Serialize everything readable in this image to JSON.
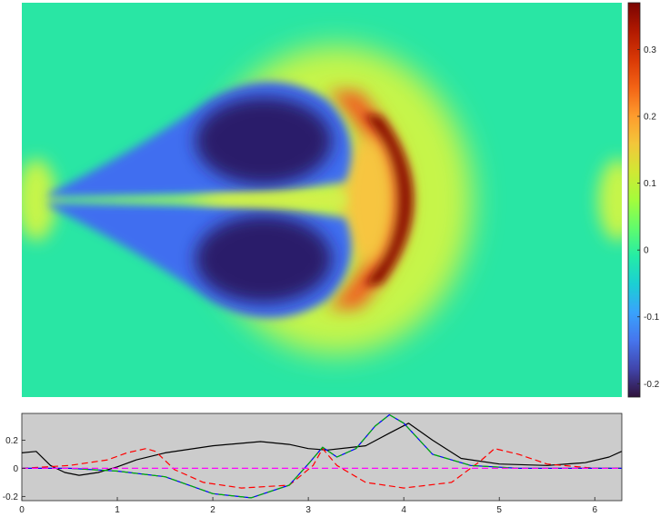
{
  "chart_data": [
    {
      "type": "heatmap",
      "title": "",
      "xlabel": "",
      "ylabel": "",
      "xlim": [
        0,
        6.2832
      ],
      "colormap": "turbo",
      "colorbar": {
        "range": [
          -0.22,
          0.37
        ],
        "ticks": [
          -0.2,
          -0.1,
          0,
          0.1,
          0.2,
          0.3
        ],
        "tick_labels": [
          "-0.2",
          "-0.1",
          "0",
          "0.1",
          "0.2",
          "0.3"
        ]
      },
      "features": [
        {
          "name": "upper negative lobe",
          "x": 2.55,
          "y_offset": 0.6,
          "value": -0.21
        },
        {
          "name": "lower negative lobe",
          "x": 2.55,
          "y_offset": -0.6,
          "value": -0.21
        },
        {
          "name": "positive arc front",
          "x": 3.95,
          "value": 0.36
        },
        {
          "name": "left edge positive band",
          "x": 0.0,
          "value": 0.09
        },
        {
          "name": "right edge positive band",
          "x": 6.28,
          "value": 0.09
        }
      ],
      "background_value": 0.0
    },
    {
      "type": "line",
      "title": "",
      "xlabel": "",
      "ylabel": "",
      "xlim": [
        0,
        6.2832
      ],
      "ylim": [
        -0.23,
        0.39
      ],
      "background": "#cccccc",
      "grid": false,
      "x_ticks": [
        0,
        1,
        2,
        3,
        4,
        5,
        6
      ],
      "x_tick_labels": [
        "0",
        "1",
        "2",
        "3",
        "4",
        "5",
        "6"
      ],
      "y_ticks": [
        -0.2,
        0,
        0.2
      ],
      "y_tick_labels": [
        "-0.2",
        "0",
        "0.2"
      ],
      "series": [
        {
          "color": "#000000",
          "dash": "solid",
          "x": [
            0,
            0.15,
            0.3,
            0.45,
            0.6,
            0.8,
            1.0,
            1.2,
            1.5,
            2.0,
            2.5,
            2.8,
            3.0,
            3.2,
            3.6,
            3.85,
            4.05,
            4.3,
            4.6,
            5.0,
            5.5,
            5.9,
            6.15,
            6.28
          ],
          "y": [
            0.11,
            0.12,
            0.02,
            -0.03,
            -0.05,
            -0.03,
            0.01,
            0.06,
            0.11,
            0.16,
            0.19,
            0.17,
            0.14,
            0.13,
            0.16,
            0.25,
            0.32,
            0.2,
            0.07,
            0.03,
            0.02,
            0.04,
            0.08,
            0.12
          ]
        },
        {
          "color": "#ff0000",
          "dash": "dashed",
          "x": [
            0,
            0.5,
            0.9,
            1.1,
            1.3,
            1.4,
            1.6,
            1.9,
            2.3,
            2.8,
            3.05,
            3.15,
            3.3,
            3.6,
            4.0,
            4.5,
            4.8,
            4.95,
            5.2,
            5.5,
            6.0,
            6.28
          ],
          "y": [
            0.0,
            0.02,
            0.06,
            0.11,
            0.14,
            0.12,
            -0.01,
            -0.1,
            -0.14,
            -0.12,
            0.02,
            0.14,
            0.02,
            -0.1,
            -0.14,
            -0.1,
            0.05,
            0.14,
            0.1,
            0.03,
            0.0,
            0.0
          ]
        },
        {
          "color": "#0000ff",
          "dash": "solid",
          "x": [
            0,
            0.5,
            1.0,
            1.5,
            2.0,
            2.4,
            2.8,
            3.0,
            3.15,
            3.3,
            3.5,
            3.7,
            3.85,
            4.0,
            4.3,
            4.7,
            5.2,
            6.0,
            6.28
          ],
          "y": [
            0.0,
            0.0,
            -0.02,
            -0.06,
            -0.18,
            -0.21,
            -0.12,
            0.03,
            0.15,
            0.08,
            0.14,
            0.3,
            0.38,
            0.32,
            0.1,
            0.02,
            0.0,
            0.0,
            0.0
          ]
        },
        {
          "color": "#00b000",
          "dash": "dashed",
          "x": [
            0,
            0.5,
            1.0,
            1.5,
            2.0,
            2.4,
            2.8,
            3.0,
            3.15,
            3.3,
            3.5,
            3.7,
            3.85,
            4.0,
            4.3,
            4.7,
            5.2,
            6.0,
            6.28
          ],
          "y": [
            0.0,
            0.0,
            -0.02,
            -0.06,
            -0.18,
            -0.21,
            -0.12,
            0.03,
            0.15,
            0.08,
            0.14,
            0.3,
            0.38,
            0.32,
            0.1,
            0.02,
            0.0,
            0.0,
            0.0
          ]
        },
        {
          "color": "#ff00ff",
          "dash": "dashed",
          "x": [
            0,
            1.0,
            2.0,
            3.0,
            4.0,
            5.0,
            6.28
          ],
          "y": [
            0.0,
            0.0,
            0.0,
            0.0,
            0.0,
            0.0,
            0.0
          ]
        }
      ]
    }
  ]
}
